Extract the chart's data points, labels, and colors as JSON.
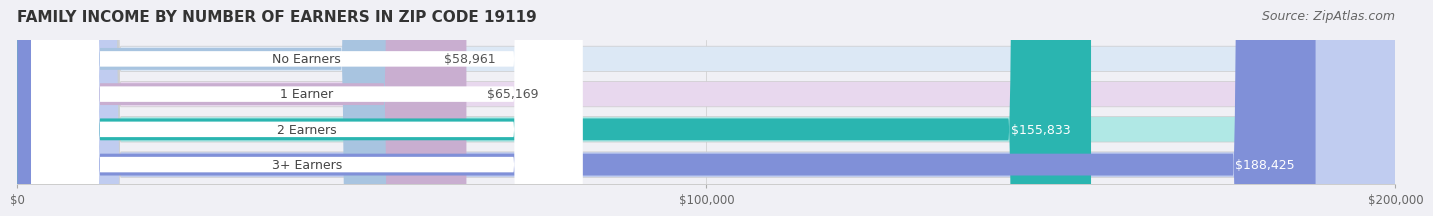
{
  "title": "FAMILY INCOME BY NUMBER OF EARNERS IN ZIP CODE 19119",
  "source": "Source: ZipAtlas.com",
  "categories": [
    "No Earners",
    "1 Earner",
    "2 Earners",
    "3+ Earners"
  ],
  "values": [
    58961,
    65169,
    155833,
    188425
  ],
  "labels": [
    "$58,961",
    "$65,169",
    "$155,833",
    "$188,425"
  ],
  "bar_colors": [
    "#a8c4e0",
    "#c9aed0",
    "#2ab5b0",
    "#8090d8"
  ],
  "bar_bg_colors": [
    "#dce8f5",
    "#e8d8ee",
    "#b0e8e5",
    "#c0ccf0"
  ],
  "xlim": [
    0,
    200000
  ],
  "xticks": [
    0,
    100000,
    200000
  ],
  "xtick_labels": [
    "$0",
    "$100,000",
    "$200,000"
  ],
  "title_fontsize": 11,
  "source_fontsize": 9,
  "label_fontsize": 9,
  "category_fontsize": 9,
  "background_color": "#f0f0f5"
}
